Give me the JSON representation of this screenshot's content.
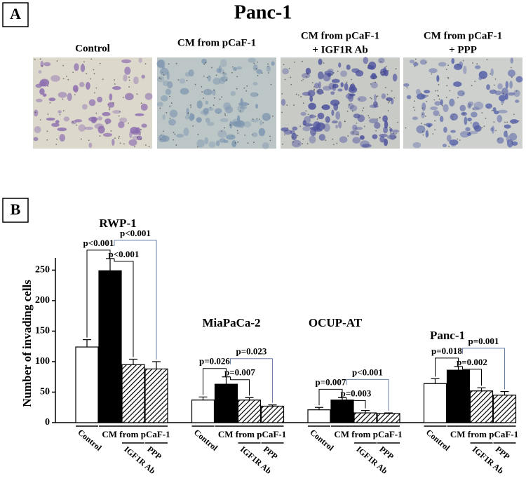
{
  "panel_a": {
    "label": "A",
    "title": "Panc-1",
    "images": [
      {
        "caption": [
          "Control"
        ]
      },
      {
        "caption": [
          "CM from pCaF-1"
        ]
      },
      {
        "caption": [
          "CM from pCaF-1",
          "+ IGF1R Ab"
        ]
      },
      {
        "caption": [
          "CM from pCaF-1",
          "+ PPP"
        ]
      }
    ]
  },
  "panel_b": {
    "label": "B"
  },
  "chart_data": {
    "type": "bar",
    "ylabel": "Number of invading cells",
    "ylim": [
      0,
      270
    ],
    "yticks": [
      0,
      50,
      100,
      150,
      200,
      250
    ],
    "groups": [
      {
        "name": "RWP-1",
        "pvalues": [
          "p<0.001",
          "p<0.001",
          "p<0.001"
        ]
      },
      {
        "name": "MiaPaCa-2",
        "pvalues": [
          "p=0.026",
          "p=0.007",
          "p=0.023"
        ]
      },
      {
        "name": "OCUP-AT",
        "pvalues": [
          "p=0.007",
          "p=0.003",
          "p<0.001"
        ]
      },
      {
        "name": "Panc-1",
        "pvalues": [
          "p=0.018",
          "p=0.002",
          "p=0.001"
        ]
      }
    ],
    "series": [
      {
        "name": "Control",
        "color": "#ffffff",
        "hatch": false,
        "values": [
          124,
          37,
          21,
          64
        ],
        "errors": [
          12,
          5,
          4,
          8
        ]
      },
      {
        "name": "CM from pCaF-1",
        "color": "#000000",
        "hatch": false,
        "values": [
          249,
          63,
          37,
          86
        ],
        "errors": [
          20,
          12,
          4,
          6
        ]
      },
      {
        "name": "IGF1R Ab",
        "color": "#ffffff",
        "hatch": true,
        "values": [
          95,
          37,
          16,
          52
        ],
        "errors": [
          9,
          4,
          4,
          5
        ]
      },
      {
        "name": "PPP",
        "color": "#ffffff",
        "hatch": true,
        "values": [
          88,
          27,
          15,
          45
        ],
        "errors": [
          12,
          2,
          1,
          6
        ]
      }
    ]
  }
}
